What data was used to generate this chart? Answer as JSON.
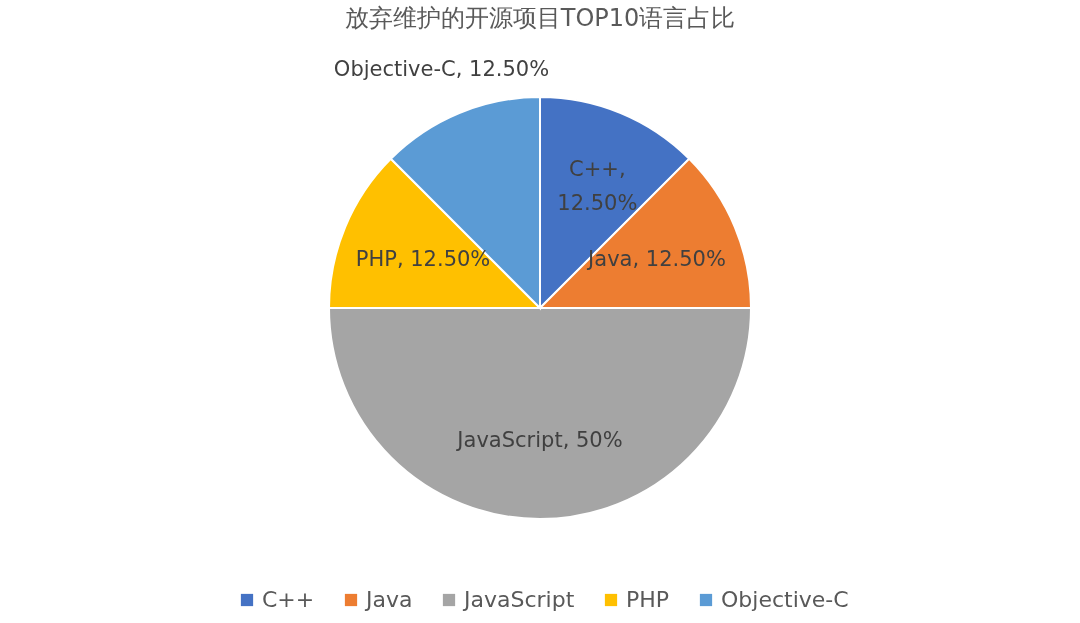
{
  "chart_data": {
    "type": "pie",
    "title": "放弃维护的开源项目TOP10语言占比",
    "categories": [
      "C++",
      "Java",
      "JavaScript",
      "PHP",
      "Objective-C"
    ],
    "values": [
      12.5,
      12.5,
      50,
      12.5,
      12.5
    ],
    "colors": [
      "#4472c4",
      "#ed7d31",
      "#a5a5a5",
      "#ffc000",
      "#5b9bd5"
    ],
    "value_labels": [
      "C++, 12.50%",
      "Java, 12.50%",
      "JavaScript, 50%",
      "PHP, 12.50%",
      "Objective-C, 12.50%"
    ],
    "legend": "bottom"
  }
}
